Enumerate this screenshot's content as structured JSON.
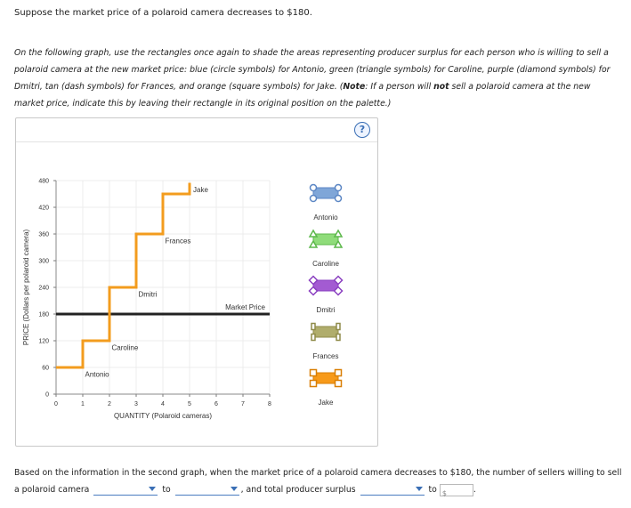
{
  "intro": "Suppose the market price of a polaroid camera decreases to $180.",
  "instructions": {
    "part1": "On the following graph, use the rectangles once again to shade the areas representing producer surplus for each person who is willing to sell a polaroid camera at the new market price: blue (circle symbols) for Antonio, green (triangle symbols) for Caroline, purple (diamond symbols) for Dmitri, tan (dash symbols) for Frances, and orange (square symbols) for Jake. (",
    "note_label": "Note",
    "part2": ": If a person will ",
    "emph": "not",
    "part3": " sell a polaroid camera at the new market price, indicate this by leaving their rectangle in its original position on the palette.)"
  },
  "help_label": "?",
  "chart_data": {
    "type": "line",
    "xlabel": "QUANTITY (Polaroid cameras)",
    "ylabel": "PRICE (Dollars per polaroid camera)",
    "xlim": [
      0,
      8
    ],
    "ylim": [
      0,
      480
    ],
    "xticks": [
      "0",
      "1",
      "2",
      "3",
      "4",
      "5",
      "6",
      "7",
      "8"
    ],
    "yticks": [
      "0",
      "60",
      "120",
      "180",
      "240",
      "300",
      "360",
      "420",
      "480"
    ],
    "supply_steps": [
      {
        "seller": "Antonio",
        "x0": 0,
        "x1": 1,
        "price": 60
      },
      {
        "seller": "Caroline",
        "x0": 1,
        "x1": 2,
        "price": 120
      },
      {
        "seller": "Dmitri",
        "x0": 2,
        "x1": 3,
        "price": 240
      },
      {
        "seller": "Frances",
        "x0": 3,
        "x1": 4,
        "price": 360
      },
      {
        "seller": "Jake",
        "x0": 4,
        "x1": 5,
        "price": 450
      }
    ],
    "supply_top": 475,
    "supply_color": "#f39c1e",
    "market_price": 180,
    "market_price_label": "Market Price",
    "market_price_color": "#222222",
    "labels": [
      {
        "text": "Antonio",
        "x": 1.25,
        "y": 45
      },
      {
        "text": "Caroline",
        "x": 2.25,
        "y": 105
      },
      {
        "text": "Dmitri",
        "x": 3.25,
        "y": 225
      },
      {
        "text": "Frances",
        "x": 4.25,
        "y": 345
      },
      {
        "text": "Jake",
        "x": 5.3,
        "y": 460
      }
    ]
  },
  "palette": [
    {
      "name": "Antonio",
      "shape": "circle",
      "fill": "#7fa6d8",
      "stroke": "#5b86c4"
    },
    {
      "name": "Caroline",
      "shape": "triangle",
      "fill": "#8fdc7a",
      "stroke": "#5cb84a"
    },
    {
      "name": "Dmitri",
      "shape": "diamond",
      "fill": "#a35bd2",
      "stroke": "#8a3fc0"
    },
    {
      "name": "Frances",
      "shape": "dash",
      "fill": "#b0ad6c",
      "stroke": "#8f8b4a"
    },
    {
      "name": "Jake",
      "shape": "square",
      "fill": "#f79a1a",
      "stroke": "#d97f05"
    }
  ],
  "question": {
    "part1": "Based on the information in the second graph, when the market price of a polaroid camera decreases to $180, the number of sellers willing to sell a polaroid camera",
    "to1": "to",
    "part2": ", and total producer surplus",
    "to2": "to",
    "dollar": "$"
  }
}
